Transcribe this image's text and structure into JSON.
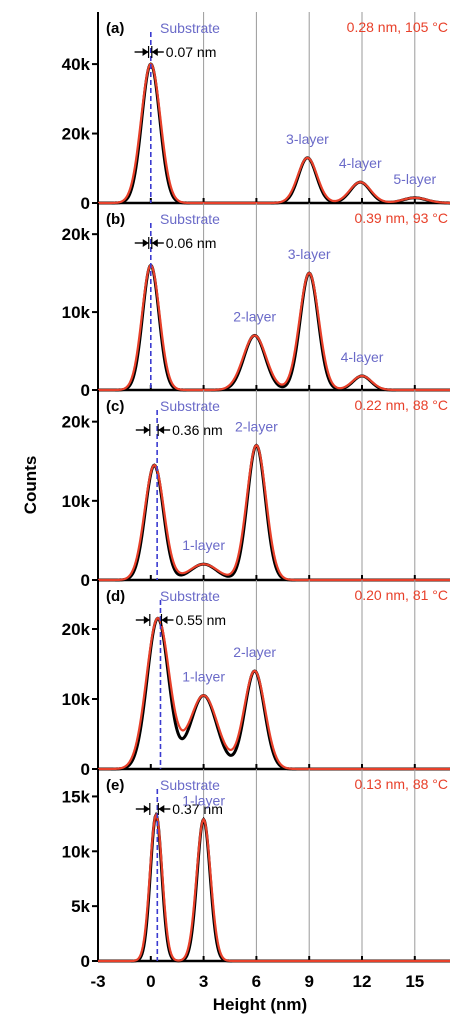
{
  "chart_data": {
    "type": "line",
    "xlabel": "Height (nm)",
    "ylabel": "Counts",
    "xlim": [
      -3,
      17
    ],
    "x_ticks": [
      -3,
      0,
      3,
      6,
      9,
      12,
      15
    ],
    "x_tick_labels": [
      "-3",
      "0",
      "3",
      "6",
      "9",
      "12",
      "15"
    ],
    "vertical_gridlines_at": [
      3,
      6,
      9,
      12,
      15
    ],
    "panels": [
      {
        "label": "(a)",
        "conditions": "0.28 nm, 105 °C",
        "ylim": [
          0,
          55000
        ],
        "y_ticks": [
          0,
          20000,
          40000
        ],
        "y_tick_labels": [
          "0",
          "20k",
          "40k"
        ],
        "substrate_label": "Substrate",
        "substrate_line_x": 0.0,
        "shift_label": "0.07 nm",
        "shift_from": -0.07,
        "shift_to": 0.0,
        "peaks": [
          {
            "label": "",
            "x": 0.0,
            "height": 40000,
            "width": 0.55
          },
          {
            "label": "3-layer",
            "x": 8.9,
            "height": 13000,
            "width": 0.55
          },
          {
            "label": "4-layer",
            "x": 11.9,
            "height": 6000,
            "width": 0.6
          },
          {
            "label": "5-layer",
            "x": 15.0,
            "height": 1500,
            "width": 0.7
          }
        ]
      },
      {
        "label": "(b)",
        "conditions": "0.39 nm, 93 °C",
        "ylim": [
          0,
          24000
        ],
        "y_ticks": [
          0,
          10000,
          20000
        ],
        "y_tick_labels": [
          "0",
          "10k",
          "20k"
        ],
        "substrate_label": "Substrate",
        "substrate_line_x": 0.0,
        "shift_label": "0.06 nm",
        "shift_from": -0.06,
        "shift_to": 0.0,
        "peaks": [
          {
            "label": "",
            "x": 0.0,
            "height": 16000,
            "width": 0.5
          },
          {
            "label": "2-layer",
            "x": 5.9,
            "height": 7000,
            "width": 0.65
          },
          {
            "label": "3-layer",
            "x": 9.0,
            "height": 15000,
            "width": 0.55
          },
          {
            "label": "4-layer",
            "x": 12.0,
            "height": 1800,
            "width": 0.55
          }
        ]
      },
      {
        "label": "(c)",
        "conditions": "0.22 nm, 88 °C",
        "ylim": [
          0,
          24000
        ],
        "y_ticks": [
          0,
          10000,
          20000
        ],
        "y_tick_labels": [
          "0",
          "10k",
          "20k"
        ],
        "substrate_label": "Substrate",
        "substrate_line_x": 0.36,
        "shift_label": "0.36 nm",
        "shift_from": 0.0,
        "shift_to": 0.36,
        "peaks": [
          {
            "label": "",
            "x": 0.2,
            "height": 14500,
            "width": 0.55
          },
          {
            "label": "1-layer",
            "x": 3.0,
            "height": 2000,
            "width": 0.8
          },
          {
            "label": "2-layer",
            "x": 6.0,
            "height": 17000,
            "width": 0.55
          }
        ]
      },
      {
        "label": "(d)",
        "conditions": "0.20 nm, 81 °C",
        "ylim": [
          0,
          27000
        ],
        "y_ticks": [
          0,
          10000,
          20000
        ],
        "y_tick_labels": [
          "0",
          "10k",
          "20k"
        ],
        "substrate_label": "Substrate",
        "substrate_line_x": 0.55,
        "shift_label": "0.55 nm",
        "shift_from": 0.0,
        "shift_to": 0.55,
        "peaks": [
          {
            "label": "",
            "x": 0.4,
            "height": 21500,
            "width": 0.65
          },
          {
            "label": "1-layer",
            "x": 3.0,
            "height": 10500,
            "width": 0.8
          },
          {
            "label": "2-layer",
            "x": 5.9,
            "height": 14000,
            "width": 0.6
          }
        ]
      },
      {
        "label": "(e)",
        "conditions": "0.13 nm, 88 °C",
        "ylim": [
          0,
          17500
        ],
        "y_ticks": [
          0,
          5000,
          10000,
          15000
        ],
        "y_tick_labels": [
          "0",
          "5k",
          "10k",
          "15k"
        ],
        "substrate_label": "Substrate",
        "substrate_line_x": 0.37,
        "shift_label": "0.37 nm",
        "shift_from": 0.0,
        "shift_to": 0.37,
        "peaks": [
          {
            "label": "",
            "x": 0.3,
            "height": 13300,
            "width": 0.35
          },
          {
            "label": "1-layer",
            "x": 3.0,
            "height": 12900,
            "width": 0.4
          }
        ]
      }
    ],
    "series": [
      {
        "style": "measured histogram",
        "color": "#000000"
      },
      {
        "style": "Gaussian fit",
        "color": "#e8402a"
      }
    ]
  }
}
